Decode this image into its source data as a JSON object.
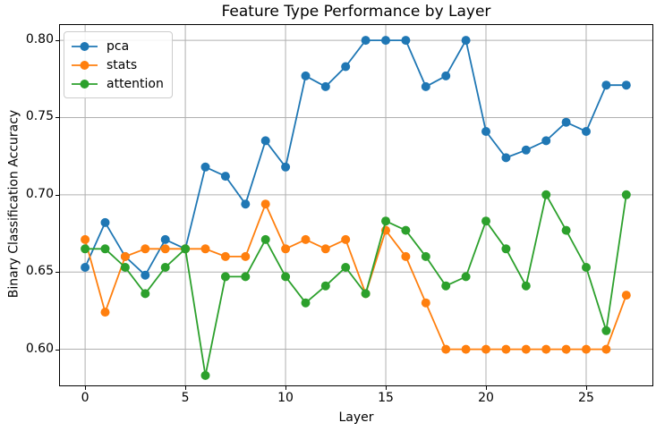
{
  "chart_data": {
    "type": "line",
    "title": "Feature Type Performance by Layer",
    "xlabel": "Layer",
    "ylabel": "Binary Classification Accuracy",
    "x": [
      0,
      1,
      2,
      3,
      4,
      5,
      6,
      7,
      8,
      9,
      10,
      11,
      12,
      13,
      14,
      15,
      16,
      17,
      18,
      19,
      20,
      21,
      22,
      23,
      24,
      25,
      26,
      27
    ],
    "series": [
      {
        "name": "pca",
        "color": "#1f77b4",
        "values": [
          0.653,
          0.682,
          0.66,
          0.648,
          0.671,
          0.665,
          0.718,
          0.712,
          0.694,
          0.735,
          0.718,
          0.777,
          0.77,
          0.783,
          0.8,
          0.8,
          0.8,
          0.77,
          0.777,
          0.8,
          0.741,
          0.724,
          0.729,
          0.735,
          0.747,
          0.741,
          0.771,
          0.771
        ]
      },
      {
        "name": "stats",
        "color": "#ff7f0e",
        "values": [
          0.671,
          0.624,
          0.66,
          0.665,
          0.665,
          0.665,
          0.665,
          0.66,
          0.66,
          0.694,
          0.665,
          0.671,
          0.665,
          0.671,
          0.636,
          0.677,
          0.66,
          0.63,
          0.6,
          0.6,
          0.6,
          0.6,
          0.6,
          0.6,
          0.6,
          0.6,
          0.6,
          0.635
        ]
      },
      {
        "name": "attention",
        "color": "#2ca02c",
        "values": [
          0.665,
          0.665,
          0.653,
          0.636,
          0.653,
          0.665,
          0.583,
          0.647,
          0.647,
          0.671,
          0.647,
          0.63,
          0.641,
          0.653,
          0.636,
          0.683,
          0.677,
          0.66,
          0.641,
          0.647,
          0.683,
          0.665,
          0.641,
          0.7,
          0.677,
          0.653,
          0.612,
          0.7
        ]
      }
    ],
    "xticks": [
      0,
      5,
      10,
      15,
      20,
      25
    ],
    "yticks": [
      0.6,
      0.65,
      0.7,
      0.75,
      0.8
    ],
    "xlim": [
      -1.3,
      28.35
    ],
    "ylim": [
      0.576,
      0.8105
    ],
    "grid": true,
    "grid_color": "#b0b0b0",
    "spine_color": "#000000",
    "background": "#ffffff",
    "legend_position": "upper left",
    "marker": "circle",
    "marker_radius": 5,
    "line_width": 1.8
  }
}
